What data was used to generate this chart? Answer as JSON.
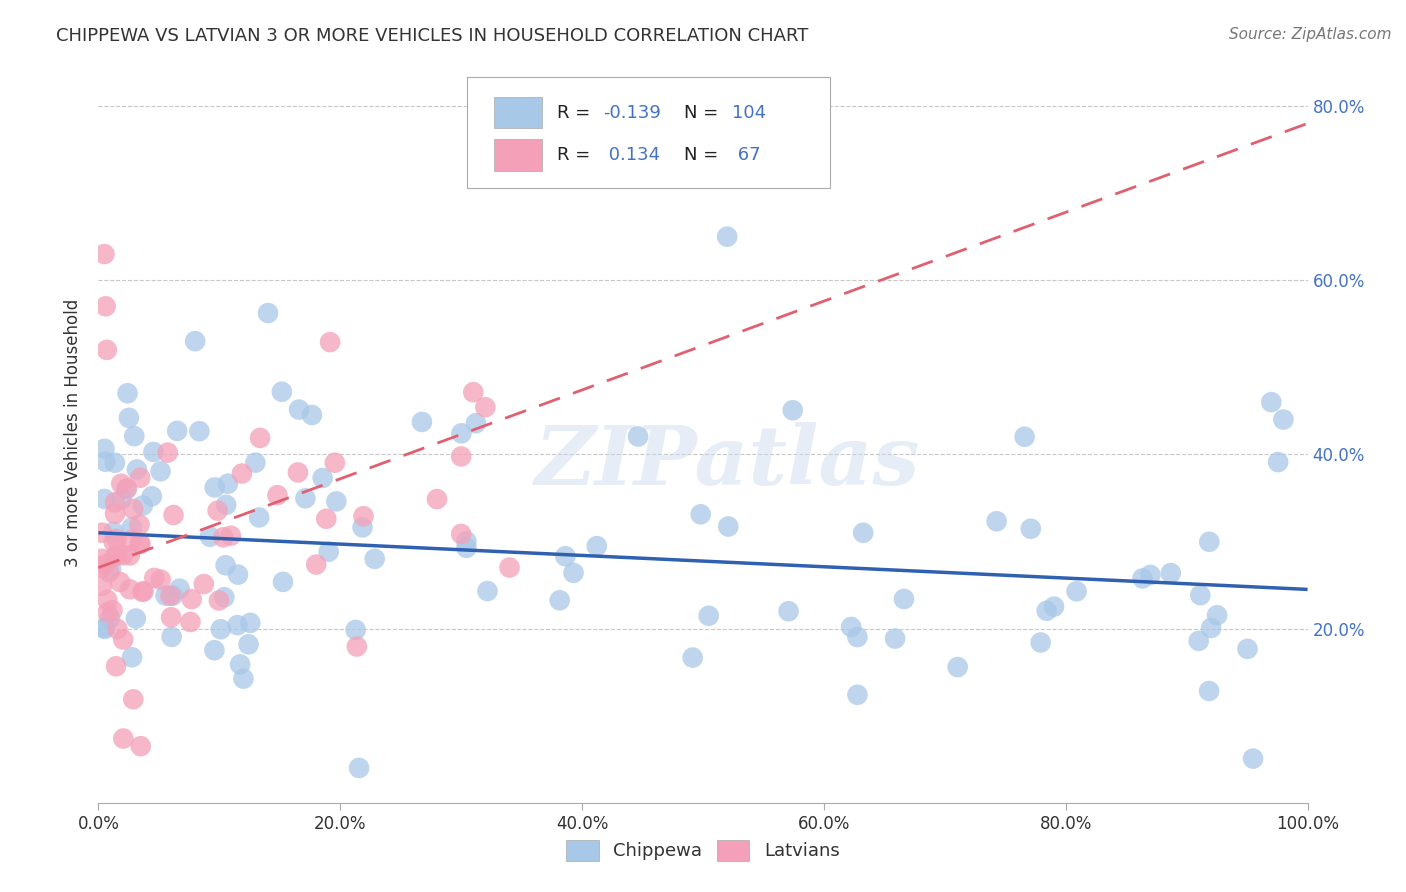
{
  "title": "CHIPPEWA VS LATVIAN 3 OR MORE VEHICLES IN HOUSEHOLD CORRELATION CHART",
  "source_text": "Source: ZipAtlas.com",
  "ylabel": "3 or more Vehicles in Household",
  "watermark": "ZIPatlas",
  "xlim": [
    0.0,
    1.0
  ],
  "ylim": [
    0.0,
    0.85
  ],
  "xticks": [
    0.0,
    0.2,
    0.4,
    0.6,
    0.8,
    1.0
  ],
  "yticks": [
    0.2,
    0.4,
    0.6,
    0.8
  ],
  "xticklabels": [
    "0.0%",
    "20.0%",
    "40.0%",
    "60.0%",
    "80.0%",
    "100.0%"
  ],
  "yticklabels_right": [
    "20.0%",
    "40.0%",
    "60.0%",
    "80.0%"
  ],
  "chippewa_color": "#a8c8e8",
  "latvian_color": "#f4a0b8",
  "chippewa_line_color": "#3060b0",
  "latvian_line_color": "#e06070",
  "grid_color": "#c8c8c8",
  "background_color": "#ffffff",
  "R_N_color": "#4472c4",
  "legend_chip_R": "-0.139",
  "legend_chip_N": "104",
  "legend_lat_R": "0.134",
  "legend_lat_N": "67",
  "chip_line_start_y": 0.31,
  "chip_line_end_y": 0.245,
  "lat_line_start_y": 0.27,
  "lat_line_end_y": 0.78
}
